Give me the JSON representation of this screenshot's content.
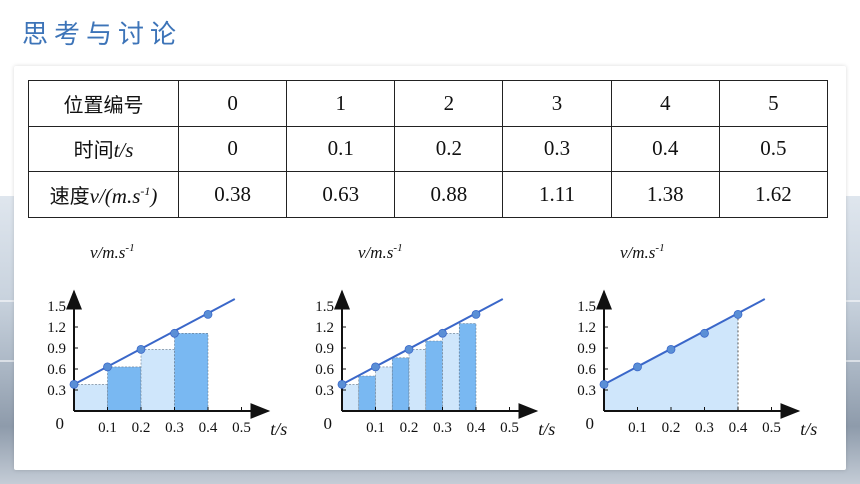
{
  "title": "思考与讨论",
  "table": {
    "rows": [
      {
        "label_cn": "位置编号",
        "label_unit": "",
        "values": [
          "0",
          "1",
          "2",
          "3",
          "4",
          "5"
        ]
      },
      {
        "label_cn": "时间",
        "label_unit": "t/s",
        "values": [
          "0",
          "0.1",
          "0.2",
          "0.3",
          "0.4",
          "0.5"
        ]
      },
      {
        "label_cn": "速度",
        "label_unit": "v/(m.s",
        "label_sup": "-1",
        "label_close": ")",
        "values": [
          "0.38",
          "0.63",
          "0.88",
          "1.11",
          "1.38",
          "1.62"
        ]
      }
    ]
  },
  "chart_data": [
    {
      "type": "bar",
      "ylabel": "v/m.s",
      "ylabel_sup": "-1",
      "xlabel": "t/s",
      "origin_label": "0",
      "xticks": [
        "0.1",
        "0.2",
        "0.3",
        "0.4",
        "0.5"
      ],
      "yticks": [
        "0.3",
        "0.6",
        "0.9",
        "1.2",
        "1.5"
      ],
      "xlim": [
        0,
        0.55
      ],
      "ylim": [
        0,
        1.65
      ],
      "bar_width": 0.1,
      "bars": [
        {
          "x": 0.0,
          "v": 0.38
        },
        {
          "x": 0.1,
          "v": 0.63
        },
        {
          "x": 0.2,
          "v": 0.88
        },
        {
          "x": 0.3,
          "v": 1.11
        }
      ],
      "points": [
        {
          "x": 0.0,
          "v": 0.38
        },
        {
          "x": 0.1,
          "v": 0.63
        },
        {
          "x": 0.2,
          "v": 0.88
        },
        {
          "x": 0.3,
          "v": 1.11
        },
        {
          "x": 0.4,
          "v": 1.38
        }
      ],
      "fit_line": [
        {
          "x": 0.0,
          "v": 0.38
        },
        {
          "x": 0.48,
          "v": 1.6
        }
      ]
    },
    {
      "type": "bar",
      "ylabel": "v/m.s",
      "ylabel_sup": "-1",
      "xlabel": "t/s",
      "origin_label": "0",
      "xticks": [
        "0.1",
        "0.2",
        "0.3",
        "0.4",
        "0.5"
      ],
      "yticks": [
        "0.3",
        "0.6",
        "0.9",
        "1.2",
        "1.5"
      ],
      "xlim": [
        0,
        0.55
      ],
      "ylim": [
        0,
        1.65
      ],
      "bar_width": 0.05,
      "bars": [
        {
          "x": 0.0,
          "v": 0.38
        },
        {
          "x": 0.05,
          "v": 0.5
        },
        {
          "x": 0.1,
          "v": 0.63
        },
        {
          "x": 0.15,
          "v": 0.76
        },
        {
          "x": 0.2,
          "v": 0.88
        },
        {
          "x": 0.25,
          "v": 1.0
        },
        {
          "x": 0.3,
          "v": 1.11
        },
        {
          "x": 0.35,
          "v": 1.25
        }
      ],
      "points": [
        {
          "x": 0.0,
          "v": 0.38
        },
        {
          "x": 0.1,
          "v": 0.63
        },
        {
          "x": 0.2,
          "v": 0.88
        },
        {
          "x": 0.3,
          "v": 1.11
        },
        {
          "x": 0.4,
          "v": 1.38
        }
      ],
      "fit_line": [
        {
          "x": 0.0,
          "v": 0.38
        },
        {
          "x": 0.48,
          "v": 1.6
        }
      ]
    },
    {
      "type": "area",
      "ylabel": "v/m.s",
      "ylabel_sup": "-1",
      "xlabel": "t/s",
      "origin_label": "0",
      "xticks": [
        "0.1",
        "0.2",
        "0.3",
        "0.4",
        "0.5"
      ],
      "yticks": [
        "0.3",
        "0.6",
        "0.9",
        "1.2",
        "1.5"
      ],
      "xlim": [
        0,
        0.55
      ],
      "ylim": [
        0,
        1.65
      ],
      "area_end": 0.4,
      "points": [
        {
          "x": 0.0,
          "v": 0.38
        },
        {
          "x": 0.1,
          "v": 0.63
        },
        {
          "x": 0.2,
          "v": 0.88
        },
        {
          "x": 0.3,
          "v": 1.11
        },
        {
          "x": 0.4,
          "v": 1.38
        }
      ],
      "fit_line": [
        {
          "x": 0.0,
          "v": 0.38
        },
        {
          "x": 0.48,
          "v": 1.6
        }
      ]
    }
  ]
}
